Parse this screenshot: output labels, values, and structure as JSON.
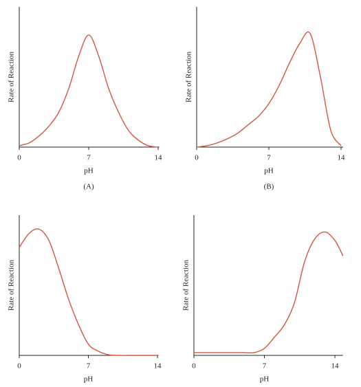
{
  "chart_data": [
    {
      "type": "line",
      "caption": "(A)",
      "xlabel": "pH",
      "ylabel": "Rate of Reaction",
      "xlim": [
        0,
        14.1
      ],
      "ylim": [
        0,
        100
      ],
      "xticks": [
        0,
        7,
        14
      ],
      "series": [
        {
          "color": "#d4553f",
          "x": [
            0,
            1,
            2,
            3,
            4,
            5,
            6,
            7,
            8,
            9,
            10,
            11,
            12,
            13,
            14
          ],
          "values": [
            1,
            3,
            8,
            15,
            25,
            42,
            65,
            80,
            65,
            42,
            25,
            12,
            5,
            1,
            0
          ]
        }
      ]
    },
    {
      "type": "line",
      "caption": "(B)",
      "xlabel": "pH",
      "ylabel": "Rate of Reaction",
      "xlim": [
        0,
        14.2
      ],
      "ylim": [
        0,
        100
      ],
      "xticks": [
        0,
        7,
        14
      ],
      "series": [
        {
          "color": "#d4553f",
          "x": [
            0,
            1,
            2,
            3,
            4,
            5,
            6,
            7,
            8,
            9,
            10,
            11,
            12,
            13,
            14
          ],
          "values": [
            0,
            1,
            3,
            6,
            10,
            16,
            22,
            31,
            44,
            60,
            74,
            81,
            50,
            12,
            1
          ]
        }
      ]
    },
    {
      "type": "line",
      "xlabel": "pH",
      "ylabel": "Rate of Reaction",
      "xlim": [
        0,
        14.1
      ],
      "ylim": [
        0,
        100
      ],
      "xticks": [
        0,
        7,
        14
      ],
      "series": [
        {
          "color": "#d4553f",
          "x": [
            0,
            1,
            2,
            3,
            4,
            5,
            6,
            7,
            8,
            9,
            10,
            11,
            12,
            13,
            14
          ],
          "values": [
            77,
            87,
            90,
            82,
            62,
            40,
            22,
            8,
            3,
            0.5,
            0,
            0,
            0,
            0,
            0
          ]
        }
      ]
    },
    {
      "type": "line",
      "xlabel": "pH",
      "ylabel": "Rate of Reaction",
      "xlim": [
        0,
        14.8
      ],
      "ylim": [
        0,
        100
      ],
      "xticks": [
        0,
        7,
        14
      ],
      "series": [
        {
          "color": "#d4553f",
          "x": [
            0,
            1,
            2,
            3,
            4,
            5,
            6,
            7,
            8,
            9,
            10,
            11,
            12,
            13,
            14,
            14.8
          ],
          "values": [
            2,
            2,
            2,
            2,
            2,
            2,
            2,
            5,
            13,
            22,
            38,
            67,
            83,
            88,
            82,
            71
          ]
        }
      ]
    }
  ]
}
